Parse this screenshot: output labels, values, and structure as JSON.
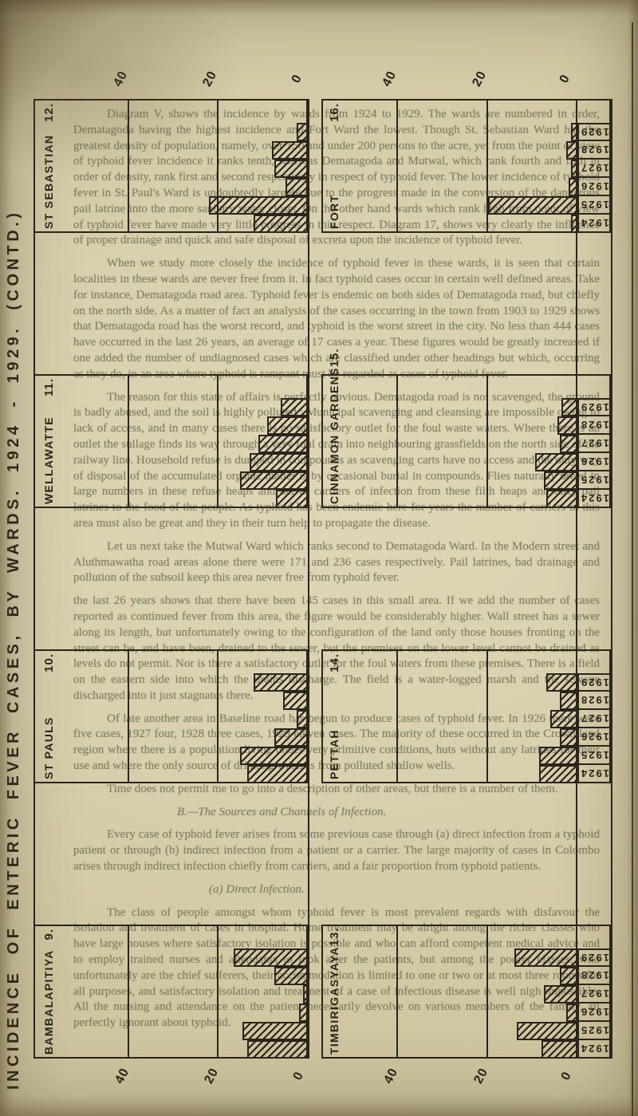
{
  "page": {
    "side_title": "INCIDENCE OF ENTERIC FEVER CASES, BY WARDS.  1924 - 1929.  (CONTD.)",
    "paper_color": "#d7cfad",
    "ink_color": "#2b251b"
  },
  "axis": {
    "ticks": [
      "40",
      "20",
      "0"
    ],
    "tick_rows": [
      "top",
      "bottom"
    ]
  },
  "years_top_to_bottom": [
    "1929",
    "1928",
    "1927",
    "1926",
    "1925",
    "1924"
  ],
  "chart_data": [
    {
      "type": "bar",
      "title": "ST SEBASTIAN",
      "ward_number": "12.",
      "row": 0,
      "col": "left",
      "show_year_labels": false,
      "categories": [
        "1929",
        "1928",
        "1927",
        "1926",
        "1925",
        "1924"
      ],
      "values": [
        2.5,
        8,
        7.5,
        5,
        22,
        12
      ],
      "xlabel": "",
      "ylabel": "",
      "xlim": [
        0,
        40
      ]
    },
    {
      "type": "bar",
      "title": "FORT",
      "ward_number": "16.",
      "row": 0,
      "col": "right",
      "show_year_labels": true,
      "categories": [
        "1929",
        "1928",
        "1927",
        "1926",
        "1925",
        "1924"
      ],
      "values": [
        1.5,
        2.5,
        1.5,
        2,
        20,
        1.5
      ],
      "xlabel": "",
      "ylabel": "",
      "xlim": [
        0,
        40
      ]
    },
    {
      "type": "bar",
      "title": "WELLAWATTE",
      "ward_number": "11.",
      "row": 1,
      "col": "left",
      "show_year_labels": false,
      "categories": [
        "1929",
        "1928",
        "1927",
        "1926",
        "1925",
        "1924"
      ],
      "values": [
        6,
        9,
        11,
        13,
        15,
        7
      ],
      "xlabel": "",
      "ylabel": "",
      "xlim": [
        0,
        40
      ]
    },
    {
      "type": "bar",
      "title": "CINNAMON GARDENS",
      "ward_number": "15.",
      "row": 1,
      "col": "right",
      "show_year_labels": true,
      "categories": [
        "1929",
        "1928",
        "1927",
        "1926",
        "1925",
        "1924"
      ],
      "values": [
        3.5,
        4.5,
        4,
        9.5,
        7.5,
        7
      ],
      "xlabel": "",
      "ylabel": "",
      "xlim": [
        0,
        40
      ]
    },
    {
      "type": "bar",
      "title": "ST PAULS",
      "ward_number": "10.",
      "row": 2,
      "col": "left",
      "show_year_labels": false,
      "categories": [
        "1929",
        "1928",
        "1927",
        "1926",
        "1925",
        "1924"
      ],
      "values": [
        12,
        5.5,
        2.5,
        7.5,
        15,
        13.5
      ],
      "xlabel": "",
      "ylabel": "",
      "xlim": [
        0,
        40
      ]
    },
    {
      "type": "bar",
      "title": "PETTAH",
      "ward_number": "14.",
      "row": 2,
      "col": "right",
      "show_year_labels": true,
      "categories": [
        "1929",
        "1928",
        "1927",
        "1926",
        "1925",
        "1924"
      ],
      "values": [
        7,
        4,
        6,
        4,
        8.5,
        8.5
      ],
      "xlabel": "",
      "ylabel": "",
      "xlim": [
        0,
        40
      ]
    },
    {
      "type": "bar",
      "title": "BAMBALAPITIYA",
      "ward_number": "9.",
      "row": 3,
      "col": "left",
      "show_year_labels": false,
      "categories": [
        "1929",
        "1928",
        "1927",
        "1926",
        "1925",
        "1924"
      ],
      "values": [
        16.5,
        7.5,
        1,
        2,
        14.5,
        13.5
      ],
      "xlabel": "",
      "ylabel": "",
      "xlim": [
        0,
        40
      ]
    },
    {
      "type": "bar",
      "title": "TIMBIRIGASYAYA",
      "ward_number": "13.",
      "row": 3,
      "col": "right",
      "show_year_labels": true,
      "categories": [
        "1929",
        "1928",
        "1927",
        "1926",
        "1925",
        "1924"
      ],
      "values": [
        14,
        4,
        7.5,
        2.5,
        13.5,
        8
      ],
      "xlabel": "",
      "ylabel": "",
      "xlim": [
        0,
        40
      ]
    }
  ],
  "bleed_text": {
    "paragraphs": [
      {
        "class": "ind",
        "text": "Diagram V, shows the incidence by wards from 1924 to 1929.  The wards are numbered in order, Dematagoda having the highest incidence and Fort Ward the lowest.  Though St. Sebastian Ward has the greatest density of population, namely, over 150 and under 200 persons to the acre, yet from the point of view of typhoid fever incidence it ranks tenth, whereas Dematagoda and Mutwal, which rank fourth and fifth in order of density, rank first and second respectively in respect of typhoid fever.  The lower incidence of typhoid fever in St. Paul's Ward is undoubtedly largely due to the progress made in the conversion of the dangerous pail latrine into the more sanitary water closet.  On the other hand wards which rank high from point of view of typhoid fever have made very little progress in this respect.  Diagram 17, shows very clearly the influence of proper drainage and quick and safe disposal of excreta upon the incidence of typhoid fever."
      },
      {
        "class": "ind",
        "text": "When we study more closely the incidence of typhoid fever in these wards, it is seen that certain localities in these wards are never free from it.  In fact typhoid cases occur in certain well defined areas.  Take for instance, Dematagoda road area.  Typhoid fever is endemic on both sides of Dematagoda road, but chiefly on the north side.  As a matter of fact an analysis of the cases occurring in the town from 1903 to 1929 shows that Dematagoda road has the worst record, and typhoid is the worst street in the city.  No less than 444 cases have occurred in the last 26 years, an average of 17 cases a year.  These figures would be greatly increased if one added the number of undiagnosed cases which are classified under other headings but which, occurring as they do, in an area where typhoid is rampant must be regarded as cases of typhoid fever."
      },
      {
        "class": "ind",
        "text": "The reason for this state of affairs is perfectly obvious.  Dematagoda road is not scavenged, the ground is badly abused, and the soil is highly polluted ; Municipal scavenging and cleansing are impossible owing to lack of access, and in many cases there is no satisfactory outlet for the foul waste waters.  Where there is an outlet the sullage finds its way through a very foul drain into neighbouring grassfields on the north side of the railway line.  Household refuse is dumped in compounds as scavenging carts have no access and the only way of disposal of the accumulated organic matter is by occasional burial in compounds.  Flies naturally breed in large numbers in these refuse heaps and act as carriers of infection from these filth heaps and dirty pail latrines to the food of the people.  As typhoid has been endemic here for years the number of carriers in this area must also be great and they in their turn help to propagate the disease."
      },
      {
        "class": "ind",
        "text": "Let us next take the Mutwal Ward which ranks second to Dematagoda Ward.  In the Modern street and Aluthmawatha road areas alone there were 171 and 236 cases respectively.  Pail latrines, bad drainage and pollution of the subsoil keep this area never free from typhoid fever."
      },
      {
        "class": "",
        "text": "the last 26 years shows that there have been 145 cases in this small area.  If we add the number of cases reported as continued fever from this area, the figure would be considerably higher.  Wall street has a sewer along its length, but unfortunately owing to the configuration of the land only those houses fronting on the street can be, and have been, drained to the sewer, but the premises on the lower level cannot be drained as levels do not permit.  Nor is there a satisfactory outlet for the foul waters from these premises.  There is a field on the eastern side into which the drains discharge.  The field is a water-logged marsh and the sewage discharged into it just stagnates there."
      },
      {
        "class": "ind",
        "text": "Of late another area in Baseline road has begun to produce cases of typhoid fever.  In 1926 there were five cases, 1927 four, 1928 three cases, 1929 eleven cases.  The majority of these occurred in the Crown land region where there is a population living under very primitive conditions, huts without any latrines for their use and where the only source of drinking water is from polluted shallow wells."
      },
      {
        "class": "ind",
        "text": "Time does not permit me to go into a description of other areas, but there is a number of them."
      },
      {
        "class": "head",
        "text": "B.—The Sources and Channels of Infection."
      },
      {
        "class": "ind",
        "text": "Every case of typhoid fever arises from some previous case through (a) direct infection from a typhoid patient or through (b) indirect infection from a patient or a carrier.  The large majority of cases in Colombo arises through indirect infection chiefly from carriers, and a fair proportion from typhoid patients."
      },
      {
        "class": "subhead",
        "text": "(a) Direct Infection."
      },
      {
        "class": "ind",
        "text": "The class of people amongst whom typhoid fever is most prevalent regards with disfavour the isolation and treatment of cases in hospital.  Home treatment may be alright among the richer classes who have large houses where satisfactory isolation is possible and who can afford competent medical advice and to employ trained nurses and attendants to look after the patients, but among the poorer classes, who unfortunately are the chief sufferers, their accommodation is limited to one or two or at most three rooms for all purposes, and satisfactory isolation and treatment of a case of infectious disease is well nigh impossible.  All the nursing and attendance on the patient necessarily devolve on various members of the family, all perfectly ignorant about typhoid."
      }
    ]
  }
}
